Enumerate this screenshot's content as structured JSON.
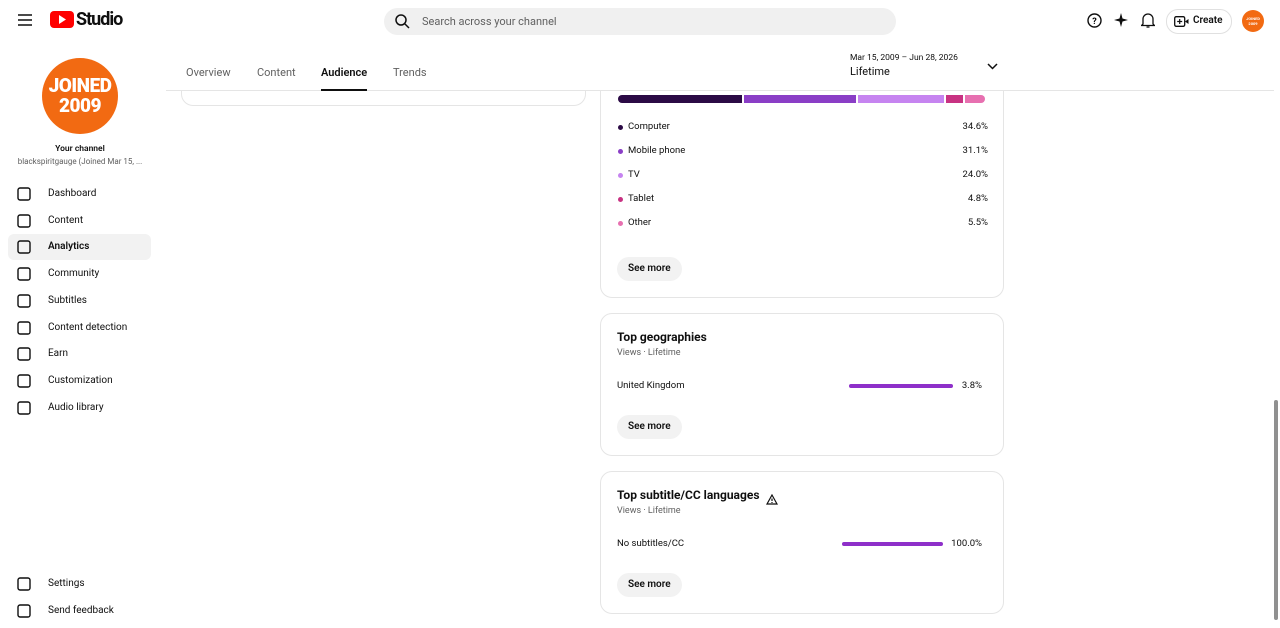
{
  "header": {
    "logo": "Studio",
    "search_placeholder": "Search across your channel",
    "create": "Create"
  },
  "sidebar": {
    "avatar_text": [
      "JOINED",
      "2009"
    ],
    "channel_label": "Your channel",
    "channel_name": "blackspiritgauge (Joined Mar 15, ...",
    "active": 2,
    "nav": [
      "Dashboard",
      "Content",
      "Analytics",
      "Community",
      "Subtitles",
      "Content detection",
      "Earn",
      "Customization",
      "Audio library"
    ],
    "footer_nav": [
      "Settings",
      "Send feedback"
    ]
  },
  "tabs": {
    "items": [
      "Overview",
      "Content",
      "Audience",
      "Trends"
    ],
    "active": 2
  },
  "date_range": {
    "range": "Mar 15, 2009 – Jun 28, 2026",
    "period": "Lifetime"
  },
  "devices": {
    "items": [
      {
        "name": "Computer",
        "value": 34.6,
        "label": "34.6%",
        "color": "#2b0a45"
      },
      {
        "name": "Mobile phone",
        "value": 31.1,
        "label": "31.1%",
        "color": "#8a3ec6"
      },
      {
        "name": "TV",
        "value": 24.0,
        "label": "24.0%",
        "color": "#c684f0"
      },
      {
        "name": "Tablet",
        "value": 4.8,
        "label": "4.8%",
        "color": "#c83282"
      },
      {
        "name": "Other",
        "value": 5.5,
        "label": "5.5%",
        "color": "#e770b0"
      }
    ],
    "see_more": "See more"
  },
  "geographies": {
    "title": "Top geographies",
    "subtitle": "Views · Lifetime",
    "items": [
      {
        "name": "United Kingdom",
        "value": 3.8,
        "label": "3.8%"
      }
    ],
    "see_more": "See more",
    "color": "#8e2fc9"
  },
  "subtitles": {
    "title": "Top subtitle/CC languages",
    "subtitle": "Views · Lifetime",
    "items": [
      {
        "name": "No subtitles/CC",
        "value": 100.0,
        "label": "100.0%"
      }
    ],
    "see_more": "See more",
    "color": "#8e2fc9"
  }
}
